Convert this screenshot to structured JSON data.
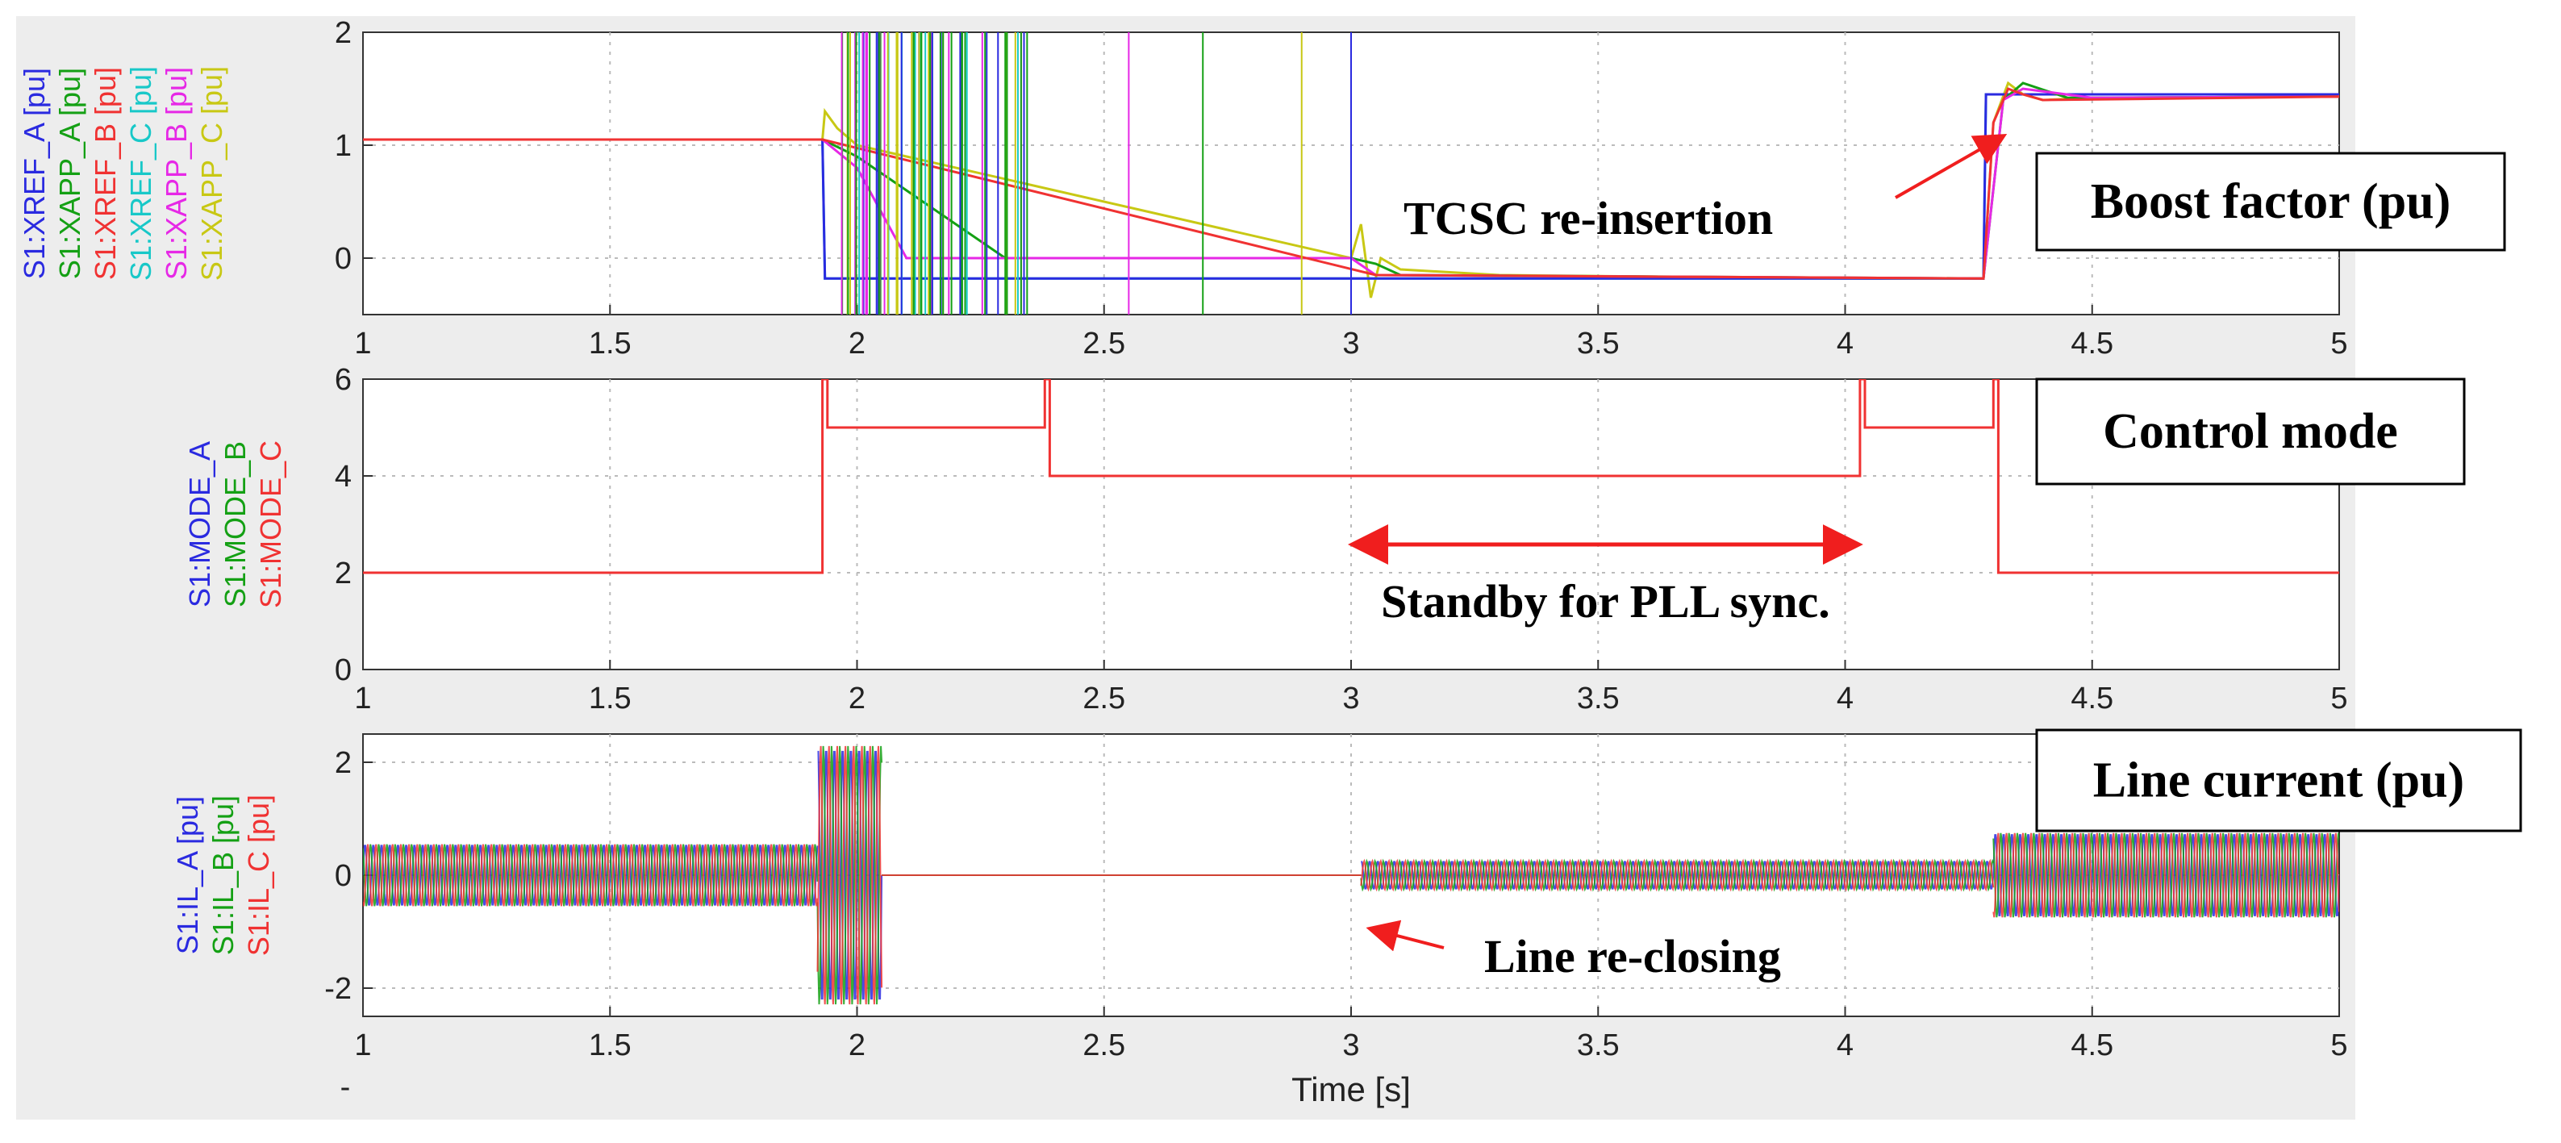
{
  "chart_data": [
    {
      "type": "line",
      "id": "boost",
      "box_label": "Boost factor (pu)",
      "ylabels": [
        {
          "text": "S1:XREF_A [pu]",
          "color": "#2a2ae0"
        },
        {
          "text": "S1:XAPP_A [pu]",
          "color": "#14a014"
        },
        {
          "text": "S1:XREF_B [pu]",
          "color": "#f03232"
        },
        {
          "text": "S1:XREF_C [pu]",
          "color": "#18c8c8"
        },
        {
          "text": "S1:XAPP_B [pu]",
          "color": "#e628e6"
        },
        {
          "text": "S1:XAPP_C [pu]",
          "color": "#c8c814"
        }
      ],
      "xlim": [
        1,
        5
      ],
      "ylim": [
        -0.5,
        2
      ],
      "xticks": [
        "1",
        "1.5",
        "2",
        "2.5",
        "3",
        "3.5",
        "4",
        "4.5",
        "5"
      ],
      "yticks": [
        "2",
        "1",
        "0"
      ],
      "grid": true,
      "series": [
        {
          "name": "S1:XAPP_C",
          "color": "#c8c814",
          "x": [
            1,
            1.93,
            1.935,
            1.96,
            2.0,
            2.1,
            3.0,
            3.02,
            3.04,
            3.06,
            3.1,
            3.3,
            4.0,
            4.28,
            4.3,
            4.33,
            4.36,
            4.4,
            4.5,
            5
          ],
          "y": [
            1.05,
            1.05,
            1.3,
            1.15,
            1.0,
            0.9,
            0.0,
            0.3,
            -0.35,
            0.0,
            -0.1,
            -0.15,
            -0.18,
            -0.18,
            1.2,
            1.55,
            1.45,
            1.4,
            1.42,
            1.43
          ]
        },
        {
          "name": "S1:XREF_C",
          "color": "#18c8c8",
          "x": [
            1,
            1.93,
            1.935,
            3.03,
            3.035,
            4.28,
            4.285,
            5
          ],
          "y": [
            1.05,
            1.05,
            -0.18,
            -0.18,
            -0.18,
            -0.18,
            1.45,
            1.45
          ]
        },
        {
          "name": "S1:XREF_A",
          "color": "#2a2ae0",
          "x": [
            1,
            1.93,
            1.935,
            2.55,
            3.03,
            3.035,
            4.28,
            4.285,
            5
          ],
          "y": [
            1.05,
            1.05,
            -0.18,
            -0.18,
            -0.18,
            -0.18,
            -0.18,
            1.45,
            1.45
          ]
        },
        {
          "name": "S1:XAPP_A",
          "color": "#14a014",
          "x": [
            1,
            1.93,
            2.0,
            2.3,
            3.0,
            3.05,
            3.1,
            4.28,
            4.32,
            4.36,
            4.45,
            5
          ],
          "y": [
            1.05,
            1.05,
            0.9,
            0.0,
            0.0,
            -0.05,
            -0.15,
            -0.18,
            1.4,
            1.55,
            1.42,
            1.43
          ]
        },
        {
          "name": "S1:XAPP_B",
          "color": "#e628e6",
          "x": [
            1,
            1.93,
            2.0,
            2.1,
            3.0,
            3.05,
            4.28,
            4.32,
            4.36,
            4.5,
            5
          ],
          "y": [
            1.05,
            1.05,
            0.8,
            0.0,
            0.0,
            -0.15,
            -0.18,
            1.4,
            1.5,
            1.42,
            1.43
          ]
        },
        {
          "name": "S1:XREF_B",
          "color": "#f03232",
          "x": [
            1,
            1.93,
            3.05,
            4.28,
            4.3,
            4.33,
            4.36,
            4.4,
            5
          ],
          "y": [
            1.05,
            1.05,
            -0.15,
            -0.18,
            1.2,
            1.5,
            1.45,
            1.4,
            1.43
          ]
        }
      ],
      "annotations": [
        {
          "text": "TCSC re-insertion",
          "arrow_to": [
            4.3,
            1.0
          ]
        }
      ]
    },
    {
      "type": "line",
      "id": "mode",
      "box_label": "Control mode",
      "ylabels": [
        {
          "text": "S1:MODE_A",
          "color": "#2a2ae0"
        },
        {
          "text": "S1:MODE_B",
          "color": "#14a014"
        },
        {
          "text": "S1:MODE_C",
          "color": "#f03232"
        }
      ],
      "xlim": [
        1,
        5
      ],
      "ylim": [
        0,
        6
      ],
      "xticks": [
        "1",
        "1.5",
        "2",
        "2.5",
        "3",
        "3.5",
        "4",
        "4.5",
        "5"
      ],
      "yticks": [
        "6",
        "4",
        "2",
        "0"
      ],
      "grid": true,
      "series": [
        {
          "name": "S1:MODE_C",
          "color": "#f03232",
          "x": [
            1,
            1.93,
            1.93,
            1.94,
            1.94,
            2.38,
            2.38,
            2.39,
            2.39,
            4.03,
            4.03,
            4.04,
            4.04,
            4.3,
            4.3,
            4.31,
            4.31,
            5
          ],
          "y": [
            2,
            2,
            6,
            6,
            5,
            5,
            6,
            6,
            4,
            4,
            6,
            6,
            5,
            5,
            6,
            6,
            2,
            2
          ]
        }
      ],
      "annotations": [
        {
          "text": "Standby for PLL sync.",
          "double_arrow": [
            3.0,
            4.03
          ]
        }
      ]
    },
    {
      "type": "line",
      "id": "current",
      "box_label": "Line current (pu)",
      "ylabels": [
        {
          "text": "S1:IL_A [pu]",
          "color": "#2a2ae0"
        },
        {
          "text": "S1:IL_B [pu]",
          "color": "#14a014"
        },
        {
          "text": "S1:IL_C [pu]",
          "color": "#f03232"
        }
      ],
      "xlim": [
        1,
        5
      ],
      "ylim": [
        -2.5,
        2.5
      ],
      "xticks": [
        "1",
        "1.5",
        "2",
        "2.5",
        "3",
        "3.5",
        "4",
        "4.5",
        "5"
      ],
      "xtick_extra": "-",
      "yticks": [
        "2",
        "0",
        "-2"
      ],
      "grid": true,
      "xlabel": "Time [s]",
      "envelope": [
        {
          "x0": 1.0,
          "x1": 1.92,
          "amp": 0.55
        },
        {
          "x0": 1.92,
          "x1": 2.05,
          "amp": 2.3
        },
        {
          "x0": 3.02,
          "x1": 4.3,
          "amp": 0.25
        },
        {
          "x0": 4.3,
          "x1": 5.0,
          "amp": 0.75
        }
      ],
      "series": [
        {
          "name": "S1:IL_A",
          "color": "#2a2ae0"
        },
        {
          "name": "S1:IL_B",
          "color": "#14a014"
        },
        {
          "name": "S1:IL_C",
          "color": "#f03232"
        }
      ],
      "annotations": [
        {
          "text": "Line re-closing",
          "arrow_to": [
            3.02,
            -0.9
          ]
        }
      ]
    }
  ]
}
